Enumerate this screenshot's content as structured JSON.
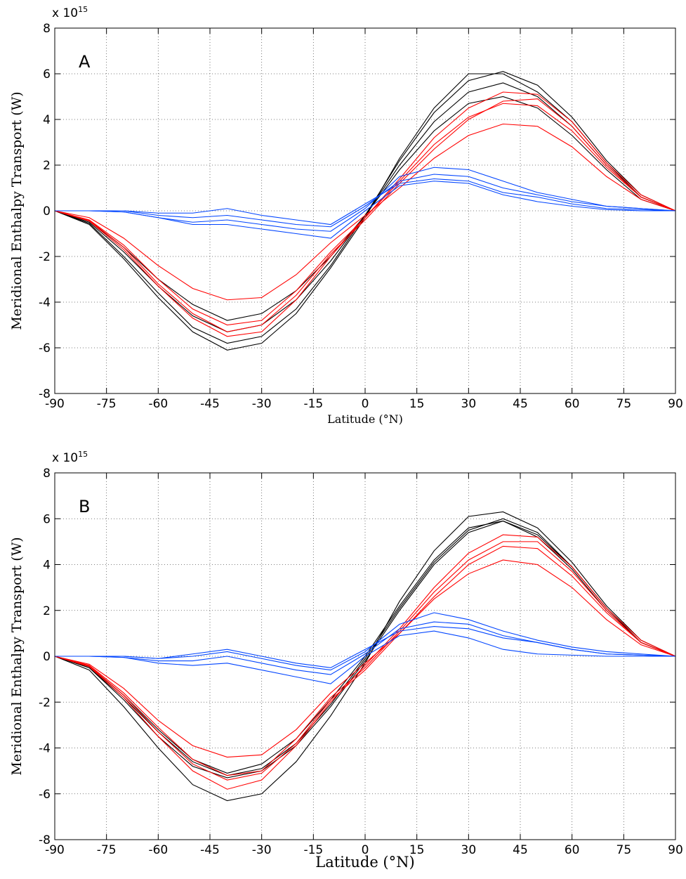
{
  "chart_data": [
    {
      "type": "line",
      "panel_label": "A",
      "multiplier": {
        "base": "x 10",
        "exponent": "15"
      },
      "ylabel": "Meridional Enthalpy Transport (W)",
      "xlabel": "Latitude (°N)",
      "x": [
        -90,
        -80,
        -70,
        -60,
        -50,
        -40,
        -30,
        -20,
        -10,
        0,
        10,
        20,
        30,
        40,
        50,
        60,
        70,
        80,
        90
      ],
      "xlim": [
        -90,
        90
      ],
      "ylim": [
        -8,
        8
      ],
      "xticks": [
        -90,
        -75,
        -60,
        -45,
        -30,
        -15,
        0,
        15,
        30,
        45,
        60,
        75,
        90
      ],
      "yticks": [
        -8,
        -6,
        -4,
        -2,
        0,
        2,
        4,
        6,
        8
      ],
      "grid": true,
      "series": [
        {
          "color": "#000000",
          "values": [
            0,
            -0.55,
            -2.0,
            -3.6,
            -5.1,
            -5.8,
            -5.5,
            -4.3,
            -2.4,
            -0.2,
            2.2,
            4.3,
            5.7,
            6.1,
            5.5,
            4.1,
            2.2,
            0.7,
            0
          ]
        },
        {
          "color": "#000000",
          "values": [
            0,
            -0.5,
            -1.8,
            -3.3,
            -4.6,
            -5.3,
            -5.0,
            -3.9,
            -2.2,
            -0.2,
            2.0,
            3.9,
            5.2,
            5.6,
            5.0,
            3.7,
            2.0,
            0.6,
            0
          ]
        },
        {
          "color": "#000000",
          "values": [
            0,
            -0.45,
            -1.6,
            -3.0,
            -4.1,
            -4.8,
            -4.5,
            -3.5,
            -2.0,
            -0.2,
            1.8,
            3.5,
            4.7,
            5.0,
            4.5,
            3.3,
            1.8,
            0.5,
            0
          ]
        },
        {
          "color": "#000000",
          "values": [
            0,
            -0.6,
            -2.1,
            -3.8,
            -5.3,
            -6.1,
            -5.8,
            -4.5,
            -2.5,
            -0.3,
            2.3,
            4.5,
            6.0,
            6.0,
            5.2,
            3.9,
            2.1,
            0.6,
            0
          ]
        },
        {
          "color": "#ff0000",
          "values": [
            0,
            -0.45,
            -1.7,
            -3.3,
            -4.7,
            -5.5,
            -5.3,
            -3.9,
            -2.0,
            -0.3,
            1.4,
            3.2,
            4.5,
            5.2,
            5.1,
            3.9,
            2.1,
            0.7,
            0
          ]
        },
        {
          "color": "#ff0000",
          "values": [
            0,
            -0.3,
            -1.2,
            -2.4,
            -3.4,
            -3.9,
            -3.8,
            -2.8,
            -1.4,
            -0.2,
            1.0,
            2.3,
            3.3,
            3.8,
            3.7,
            2.8,
            1.5,
            0.5,
            0
          ]
        },
        {
          "color": "#ff0000",
          "values": [
            0,
            -0.4,
            -1.5,
            -3.0,
            -4.3,
            -5.0,
            -4.8,
            -3.5,
            -1.8,
            -0.3,
            1.3,
            2.9,
            4.1,
            4.7,
            4.6,
            3.5,
            1.9,
            0.6,
            0
          ]
        },
        {
          "color": "#ff0000",
          "values": [
            0,
            -0.42,
            -1.6,
            -3.2,
            -4.5,
            -5.3,
            -5.0,
            -3.7,
            -1.9,
            -0.4,
            1.2,
            2.7,
            4.0,
            4.8,
            4.9,
            3.7,
            2.0,
            0.6,
            0
          ]
        },
        {
          "color": "#0044ff",
          "values": [
            0,
            0,
            0,
            -0.2,
            -0.3,
            -0.2,
            -0.4,
            -0.6,
            -0.7,
            0.2,
            1.3,
            1.6,
            1.5,
            1.0,
            0.7,
            0.4,
            0.2,
            0.1,
            0
          ]
        },
        {
          "color": "#0044ff",
          "values": [
            0,
            0,
            -0.05,
            -0.3,
            -0.5,
            -0.4,
            -0.6,
            -0.8,
            -0.9,
            0.1,
            1.5,
            1.9,
            1.8,
            1.3,
            0.8,
            0.5,
            0.2,
            0.1,
            0
          ]
        },
        {
          "color": "#0044ff",
          "values": [
            0,
            0,
            0,
            -0.1,
            -0.1,
            0.1,
            -0.2,
            -0.4,
            -0.6,
            0.3,
            1.2,
            1.4,
            1.3,
            0.8,
            0.6,
            0.3,
            0.1,
            0.05,
            0
          ]
        },
        {
          "color": "#0044ff",
          "values": [
            0,
            0,
            -0.05,
            -0.3,
            -0.6,
            -0.6,
            -0.8,
            -1.0,
            -1.2,
            0.0,
            1.1,
            1.3,
            1.2,
            0.7,
            0.4,
            0.2,
            0.05,
            0,
            0
          ]
        }
      ]
    },
    {
      "type": "line",
      "panel_label": "B",
      "multiplier": {
        "base": "x 10",
        "exponent": "15"
      },
      "ylabel": "Meridional Enthalpy Transport (W)",
      "xlabel": "Latitude (°N)",
      "x": [
        -90,
        -80,
        -70,
        -60,
        -50,
        -40,
        -30,
        -20,
        -10,
        0,
        10,
        20,
        30,
        40,
        50,
        60,
        70,
        80,
        90
      ],
      "xlim": [
        -90,
        90
      ],
      "ylim": [
        -8,
        8
      ],
      "xticks": [
        -90,
        -75,
        -60,
        -45,
        -30,
        -15,
        0,
        15,
        30,
        45,
        60,
        75,
        90
      ],
      "yticks": [
        -8,
        -6,
        -4,
        -2,
        0,
        2,
        4,
        6,
        8
      ],
      "grid": true,
      "series": [
        {
          "color": "#000000",
          "values": [
            0,
            -0.6,
            -2.2,
            -4.0,
            -5.6,
            -6.3,
            -6.0,
            -4.6,
            -2.6,
            -0.3,
            2.4,
            4.6,
            6.1,
            6.3,
            5.6,
            4.1,
            2.2,
            0.7,
            0
          ]
        },
        {
          "color": "#000000",
          "values": [
            0,
            -0.5,
            -1.9,
            -3.5,
            -4.8,
            -5.3,
            -5.0,
            -3.9,
            -2.2,
            -0.2,
            2.0,
            4.0,
            5.4,
            5.9,
            5.3,
            3.9,
            2.1,
            0.6,
            0
          ]
        },
        {
          "color": "#000000",
          "values": [
            0,
            -0.5,
            -1.8,
            -3.3,
            -4.6,
            -5.2,
            -4.9,
            -3.8,
            -2.1,
            -0.1,
            2.1,
            4.1,
            5.5,
            6.0,
            5.4,
            3.9,
            2.1,
            0.6,
            0
          ]
        },
        {
          "color": "#000000",
          "values": [
            0,
            -0.45,
            -1.7,
            -3.2,
            -4.5,
            -5.1,
            -4.7,
            -3.6,
            -1.9,
            0.0,
            2.2,
            4.2,
            5.6,
            5.9,
            5.2,
            3.8,
            2.0,
            0.6,
            0
          ]
        },
        {
          "color": "#ff0000",
          "values": [
            0,
            -0.45,
            -1.8,
            -3.5,
            -5.0,
            -5.8,
            -5.4,
            -3.9,
            -2.0,
            -0.4,
            1.2,
            3.0,
            4.5,
            5.3,
            5.2,
            3.9,
            2.1,
            0.7,
            0
          ]
        },
        {
          "color": "#ff0000",
          "values": [
            0,
            -0.35,
            -1.4,
            -2.8,
            -3.9,
            -4.4,
            -4.3,
            -3.2,
            -1.6,
            -0.3,
            1.0,
            2.5,
            3.6,
            4.2,
            4.0,
            3.0,
            1.6,
            0.5,
            0
          ]
        },
        {
          "color": "#ff0000",
          "values": [
            0,
            -0.4,
            -1.6,
            -3.1,
            -4.5,
            -5.2,
            -5.0,
            -3.6,
            -1.8,
            -0.5,
            1.1,
            2.8,
            4.2,
            5.0,
            5.0,
            3.7,
            2.0,
            0.6,
            0
          ]
        },
        {
          "color": "#ff0000",
          "values": [
            0,
            -0.42,
            -1.7,
            -3.3,
            -4.7,
            -5.4,
            -5.1,
            -3.8,
            -1.9,
            -0.6,
            1.0,
            2.6,
            4.0,
            4.8,
            4.7,
            3.5,
            1.9,
            0.6,
            0
          ]
        },
        {
          "color": "#0044ff",
          "values": [
            0,
            0,
            0,
            -0.1,
            0.0,
            0.2,
            -0.1,
            -0.4,
            -0.6,
            0.2,
            1.4,
            1.9,
            1.6,
            1.1,
            0.7,
            0.4,
            0.2,
            0.1,
            0
          ]
        },
        {
          "color": "#0044ff",
          "values": [
            0,
            0,
            -0.05,
            -0.2,
            -0.2,
            0.0,
            -0.3,
            -0.6,
            -0.8,
            0.1,
            1.2,
            1.5,
            1.4,
            0.9,
            0.6,
            0.3,
            0.1,
            0.05,
            0
          ]
        },
        {
          "color": "#0044ff",
          "values": [
            0,
            0,
            0,
            -0.1,
            0.1,
            0.3,
            0.0,
            -0.3,
            -0.5,
            0.3,
            1.1,
            1.3,
            1.2,
            0.8,
            0.6,
            0.3,
            0.1,
            0.05,
            0
          ]
        },
        {
          "color": "#0044ff",
          "values": [
            0,
            0,
            -0.05,
            -0.3,
            -0.4,
            -0.3,
            -0.6,
            -0.9,
            -1.2,
            0.0,
            0.9,
            1.1,
            0.8,
            0.3,
            0.1,
            0.05,
            0,
            0,
            0
          ]
        }
      ]
    }
  ]
}
